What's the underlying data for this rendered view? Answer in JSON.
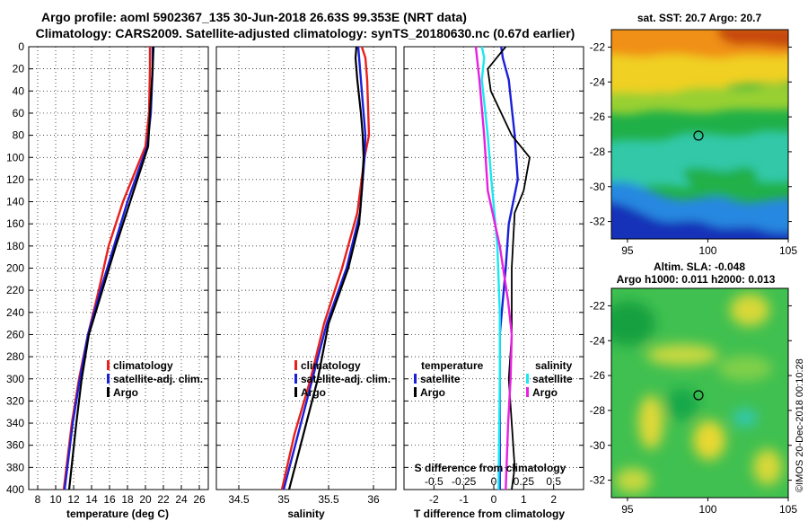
{
  "header": {
    "title_line1": "Argo profile: aoml 5902367_135 30-Jun-2018 26.63S 99.353E (NRT data)",
    "title_line2": "Climatology: CARS2009. Satellite-adjusted climatology: synTS_20180630.nc (0.67d earlier)"
  },
  "colors": {
    "climatology": "#e8201c",
    "satellite": "#1a20d8",
    "argo": "#000000",
    "salinity_sat": "#18e8f0",
    "salinity_clim": "#e820e0"
  },
  "chart_data": [
    {
      "type": "line",
      "id": "temperature-panel",
      "xlabel": "temperature (deg C)",
      "ylabel": "",
      "xlim": [
        7,
        27
      ],
      "ylim": [
        400,
        0
      ],
      "xticks": [
        "8",
        "10",
        "12",
        "14",
        "16",
        "18",
        "20",
        "22",
        "24",
        "26"
      ],
      "yticks": [
        "0",
        "20",
        "40",
        "60",
        "80",
        "100",
        "120",
        "140",
        "160",
        "180",
        "200",
        "220",
        "240",
        "260",
        "280",
        "300",
        "320",
        "340",
        "360",
        "380",
        "400"
      ],
      "grid": true,
      "legend": [
        "climatology",
        "satellite-adj. clim.",
        "Argo"
      ],
      "series": [
        {
          "name": "climatology",
          "depth": [
            0,
            20,
            60,
            90,
            110,
            140,
            180,
            220,
            260,
            300,
            340,
            400
          ],
          "values": [
            20.5,
            20.5,
            20.4,
            20.0,
            19.0,
            17.5,
            15.9,
            14.8,
            13.6,
            12.6,
            11.8,
            10.9
          ]
        },
        {
          "name": "satellite-adj. clim.",
          "depth": [
            0,
            20,
            60,
            90,
            110,
            140,
            180,
            220,
            260,
            300,
            340,
            400
          ],
          "values": [
            20.8,
            20.8,
            20.6,
            20.2,
            19.3,
            18.0,
            16.5,
            15.0,
            13.6,
            12.7,
            11.9,
            11.0
          ]
        },
        {
          "name": "Argo",
          "depth": [
            0,
            20,
            60,
            90,
            110,
            140,
            180,
            220,
            260,
            300,
            340,
            400
          ],
          "values": [
            20.9,
            20.8,
            20.5,
            20.3,
            19.5,
            18.3,
            16.7,
            15.2,
            13.7,
            12.9,
            12.3,
            11.5
          ]
        }
      ]
    },
    {
      "type": "line",
      "id": "salinity-panel",
      "xlabel": "salinity",
      "ylabel": "",
      "xlim": [
        34.25,
        36.25
      ],
      "ylim": [
        400,
        0
      ],
      "xticks": [
        "34.5",
        "35",
        "35.5",
        "36"
      ],
      "grid": true,
      "legend": [
        "climatology",
        "satellite-adj. clim.",
        "Argo"
      ],
      "series": [
        {
          "name": "climatology",
          "depth": [
            0,
            10,
            30,
            80,
            100,
            150,
            200,
            250,
            300,
            350,
            400
          ],
          "values": [
            35.87,
            35.91,
            35.93,
            35.95,
            35.9,
            35.82,
            35.65,
            35.45,
            35.3,
            35.12,
            34.98
          ]
        },
        {
          "name": "satellite-adj. clim.",
          "depth": [
            0,
            10,
            30,
            80,
            100,
            150,
            200,
            250,
            300,
            350,
            400
          ],
          "values": [
            35.83,
            35.84,
            35.86,
            35.91,
            35.9,
            35.85,
            35.7,
            35.48,
            35.32,
            35.16,
            35.0
          ]
        },
        {
          "name": "Argo",
          "depth": [
            0,
            10,
            30,
            60,
            80,
            100,
            130,
            160,
            200,
            250,
            300,
            350,
            400
          ],
          "values": [
            35.81,
            35.8,
            35.82,
            35.86,
            35.88,
            35.89,
            35.87,
            35.84,
            35.72,
            35.5,
            35.38,
            35.22,
            35.06
          ]
        }
      ]
    },
    {
      "type": "line",
      "id": "difference-panel",
      "xlabel": "T difference from climatology",
      "top_label": "S difference from climatology",
      "xlim": [
        -3,
        3
      ],
      "ylim": [
        400,
        0
      ],
      "xticks": [
        "-2",
        "-1",
        "0",
        "1",
        "2"
      ],
      "top_ticks": [
        "-0.5",
        "-0.25",
        "0",
        "0.25",
        "0.5"
      ],
      "grid": true,
      "legend_temperature_title": "temperature",
      "legend_salinity_title": "salinity",
      "legend_entries": [
        "satellite",
        "Argo",
        "satellite",
        "Argo"
      ],
      "series": [
        {
          "name": "T satellite",
          "depth": [
            0,
            10,
            30,
            80,
            120,
            160,
            200,
            260,
            320,
            400
          ],
          "values": [
            0.25,
            0.3,
            0.5,
            0.7,
            0.8,
            0.5,
            0.4,
            0.2,
            0.2,
            0.2
          ]
        },
        {
          "name": "T Argo",
          "depth": [
            0,
            10,
            20,
            40,
            80,
            100,
            130,
            150,
            200,
            260,
            300,
            340,
            380,
            400
          ],
          "values": [
            0.4,
            0.1,
            -0.2,
            -0.1,
            0.6,
            1.2,
            1.0,
            0.7,
            0.6,
            0.6,
            0.5,
            0.6,
            0.7,
            0.6
          ]
        },
        {
          "name": "S satellite",
          "depth": [
            0,
            10,
            30,
            80,
            120,
            180,
            240,
            300,
            400
          ],
          "values": [
            -0.1,
            -0.08,
            -0.1,
            -0.05,
            -0.02,
            0.03,
            0.05,
            0.05,
            0.04
          ]
        },
        {
          "name": "S Argo",
          "depth": [
            0,
            10,
            30,
            80,
            130,
            180,
            230,
            260,
            300,
            340,
            400
          ],
          "values": [
            -0.15,
            -0.14,
            -0.12,
            -0.08,
            -0.05,
            0.05,
            0.12,
            0.15,
            0.14,
            0.12,
            0.1
          ]
        }
      ]
    },
    {
      "type": "heatmap",
      "id": "sst-map",
      "title": "sat. SST: 20.7 Argo: 20.7",
      "xticks": [
        "95",
        "100",
        "105"
      ],
      "yticks": [
        "-22",
        "-24",
        "-26",
        "-28",
        "-30",
        "-32"
      ],
      "xlim": [
        94,
        105
      ],
      "ylim": [
        -33,
        -21
      ]
    },
    {
      "type": "heatmap",
      "id": "sla-map",
      "title_line1": "Altim. SLA: -0.048",
      "title_line2": "Argo h1000: 0.011 h2000: 0.013",
      "xticks": [
        "95",
        "100",
        "105"
      ],
      "yticks": [
        "-22",
        "-24",
        "-26",
        "-28",
        "-30",
        "-32"
      ],
      "xlim": [
        94,
        105
      ],
      "ylim": [
        -33,
        -21
      ]
    }
  ],
  "watermark": "©IMOS 20-Dec-2018 00:10:28"
}
